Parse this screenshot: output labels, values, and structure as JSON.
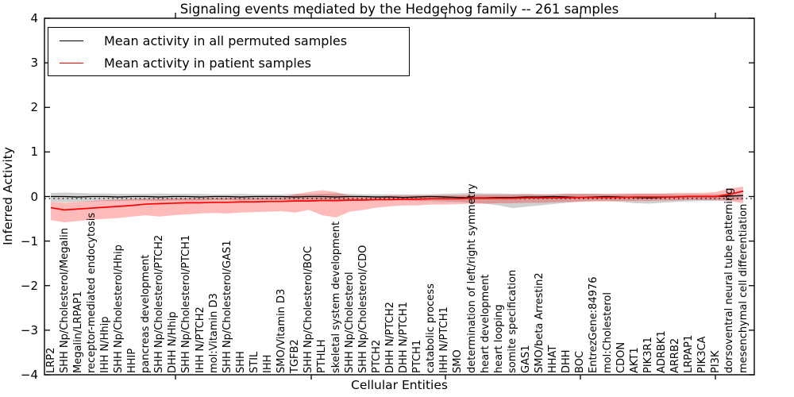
{
  "chart_data": {
    "type": "line",
    "title": "Signaling events mediated by the Hedgehog family -- 261 samples",
    "xlabel": "Cellular Entities",
    "ylabel": "Inferred Activity",
    "ylim": [
      -4,
      4
    ],
    "grid": false,
    "legend_position": "upper left",
    "yticks": [
      "4",
      "3",
      "2",
      "1",
      "0",
      "−1",
      "−2",
      "−3",
      "−4"
    ],
    "ytick_values": [
      4,
      3,
      2,
      1,
      0,
      -1,
      -2,
      -3,
      -4
    ],
    "legend": [
      {
        "label": "Mean activity in all permuted samples",
        "color": "#000000"
      },
      {
        "label": "Mean activity in patient samples",
        "color": "#ff0000"
      }
    ],
    "categories": [
      "LRP2",
      "SHH Np/Cholesterol/Megalin",
      "Megalin/LRPAP1",
      "receptor-mediated endocytosis",
      "IHH N/Hhip",
      "SHH Np/Cholesterol/Hhip",
      "HHIP",
      "pancreas development",
      "SHH Np/Cholesterol/PTCH2",
      "DHH N/Hhip",
      "SHH Np/Cholesterol/PTCH1",
      "IHH N/PTCH2",
      "mol:Vitamin D3",
      "SHH Np/Cholesterol/GAS1",
      "SHH",
      "STIL",
      "IHH",
      "SMO/Vitamin D3",
      "TGFB2",
      "SHH Np/Cholesterol/BOC",
      "PTHLH",
      "skeletal system development",
      "SHH Np/Cholesterol",
      "SHH Np/Cholesterol/CDO",
      "PTCH2",
      "DHH N/PTCH2",
      "DHH N/PTCH1",
      "PTCH1",
      "catabolic process",
      "IHH N/PTCH1",
      "SMO",
      "determination of left/right symmetry",
      "heart development",
      "heart looping",
      "somite specification",
      "GAS1",
      "SMO/beta Arrestin2",
      "HHAT",
      "DHH",
      "BOC",
      "EntrezGene:84976",
      "mol:Cholesterol",
      "CDON",
      "AKT1",
      "PIK3R1",
      "ADRBK1",
      "ARRB2",
      "LRPAP1",
      "PIK3CA",
      "PI3K",
      "dorsoventral neural tube patterning",
      "mesenchymal cell differentiation"
    ],
    "series": [
      {
        "name": "Mean activity in all permuted samples",
        "color": "#000000",
        "values": [
          0,
          0,
          -0.01,
          0,
          0,
          -0.01,
          0,
          0,
          -0.01,
          0,
          0,
          -0.01,
          0,
          0,
          -0.01,
          0,
          0,
          0,
          -0.01,
          0,
          0,
          -0.01,
          0,
          0,
          -0.01,
          -0.01,
          -0.02,
          -0.01,
          0,
          -0.01,
          -0.02,
          -0.03,
          -0.03,
          -0.02,
          -0.02,
          -0.01,
          -0.01,
          0,
          -0.01,
          -0.02,
          -0.01,
          0,
          -0.01,
          -0.02,
          -0.03,
          -0.02,
          -0.01,
          0,
          0,
          0,
          0.01,
          0.02
        ]
      },
      {
        "name": "Mean activity in patient samples",
        "color": "#ff0000",
        "values": [
          -0.25,
          -0.3,
          -0.28,
          -0.26,
          -0.24,
          -0.22,
          -0.2,
          -0.17,
          -0.16,
          -0.15,
          -0.14,
          -0.14,
          -0.13,
          -0.13,
          -0.12,
          -0.12,
          -0.11,
          -0.11,
          -0.1,
          -0.1,
          -0.09,
          -0.09,
          -0.08,
          -0.08,
          -0.07,
          -0.07,
          -0.06,
          -0.06,
          -0.05,
          -0.05,
          -0.05,
          -0.04,
          -0.04,
          -0.04,
          -0.04,
          -0.03,
          -0.03,
          -0.03,
          -0.03,
          -0.02,
          -0.02,
          -0.02,
          -0.02,
          -0.01,
          -0.01,
          -0.01,
          -0.01,
          0,
          0,
          0,
          0.05,
          0.12
        ]
      }
    ],
    "bands": [
      {
        "name": "permuted-samples-spread",
        "color": "rgba(110,110,110,0.32)",
        "upper": [
          0.08,
          0.09,
          0.08,
          0.07,
          0.07,
          0.06,
          0.06,
          0.06,
          0.07,
          0.06,
          0.06,
          0.06,
          0.05,
          0.05,
          0.06,
          0.05,
          0.05,
          0.05,
          0.06,
          0.05,
          0.06,
          0.07,
          0.06,
          0.05,
          0.05,
          0.05,
          0.05,
          0.05,
          0.05,
          0.06,
          0.07,
          0.08,
          0.07,
          0.07,
          0.06,
          0.06,
          0.05,
          0.05,
          0.06,
          0.06,
          0.06,
          0.05,
          0.05,
          0.06,
          0.06,
          0.06,
          0.05,
          0.05,
          0.05,
          0.05,
          0.06,
          0.06
        ],
        "lower": [
          -0.12,
          -0.13,
          -0.12,
          -0.11,
          -0.1,
          -0.1,
          -0.09,
          -0.09,
          -0.1,
          -0.09,
          -0.09,
          -0.09,
          -0.08,
          -0.08,
          -0.09,
          -0.08,
          -0.08,
          -0.08,
          -0.1,
          -0.09,
          -0.11,
          -0.12,
          -0.1,
          -0.09,
          -0.09,
          -0.09,
          -0.09,
          -0.1,
          -0.1,
          -0.11,
          -0.12,
          -0.14,
          -0.16,
          -0.2,
          -0.26,
          -0.23,
          -0.2,
          -0.17,
          -0.14,
          -0.11,
          -0.1,
          -0.1,
          -0.12,
          -0.15,
          -0.16,
          -0.14,
          -0.12,
          -0.11,
          -0.1,
          -0.1,
          -0.09,
          -0.08
        ]
      },
      {
        "name": "patient-samples-spread",
        "color": "rgba(255,0,0,0.27)",
        "upper": [
          -0.12,
          -0.14,
          -0.12,
          -0.1,
          -0.08,
          -0.07,
          -0.06,
          -0.05,
          -0.05,
          -0.04,
          -0.04,
          -0.04,
          -0.03,
          -0.03,
          -0.03,
          -0.03,
          -0.02,
          -0.02,
          0.05,
          0.1,
          0.14,
          0.1,
          0.02,
          0.0,
          0.0,
          0.02,
          0.02,
          0.02,
          0.03,
          0.03,
          0.03,
          0.04,
          0.04,
          0.04,
          0.04,
          0.05,
          0.05,
          0.05,
          0.06,
          0.06,
          0.06,
          0.06,
          0.07,
          0.07,
          0.07,
          0.07,
          0.08,
          0.08,
          0.08,
          0.1,
          0.18,
          0.22
        ],
        "lower": [
          -0.53,
          -0.58,
          -0.55,
          -0.52,
          -0.5,
          -0.48,
          -0.45,
          -0.42,
          -0.45,
          -0.42,
          -0.4,
          -0.38,
          -0.37,
          -0.38,
          -0.36,
          -0.35,
          -0.34,
          -0.33,
          -0.36,
          -0.3,
          -0.42,
          -0.47,
          -0.34,
          -0.3,
          -0.25,
          -0.22,
          -0.2,
          -0.2,
          -0.18,
          -0.18,
          -0.17,
          -0.16,
          -0.16,
          -0.15,
          -0.15,
          -0.14,
          -0.14,
          -0.13,
          -0.12,
          -0.12,
          -0.11,
          -0.11,
          -0.1,
          -0.1,
          -0.1,
          -0.09,
          -0.09,
          -0.08,
          -0.08,
          -0.08,
          -0.1,
          -0.15
        ]
      }
    ]
  }
}
